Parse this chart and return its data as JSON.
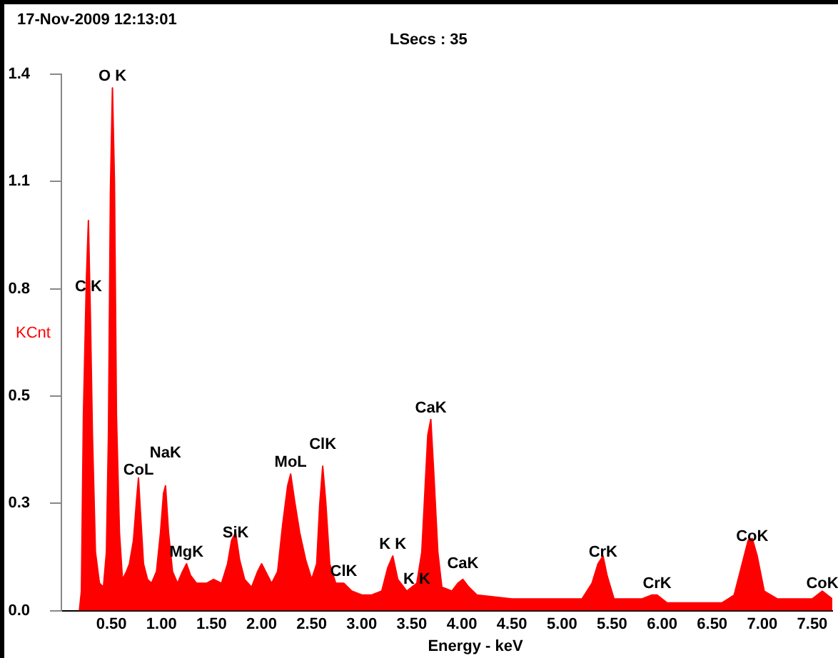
{
  "chart_data": {
    "type": "area",
    "title": "17-Nov-2009 12:13:01",
    "subtitle": "LSecs : 35",
    "xlabel": "Energy - keV",
    "ylabel": "KCnt",
    "x": [
      0.18,
      0.2,
      0.22,
      0.25,
      0.27,
      0.29,
      0.31,
      0.34,
      0.38,
      0.42,
      0.45,
      0.47,
      0.49,
      0.51,
      0.53,
      0.55,
      0.58,
      0.61,
      0.65,
      0.68,
      0.72,
      0.75,
      0.77,
      0.79,
      0.82,
      0.86,
      0.9,
      0.95,
      0.99,
      1.02,
      1.04,
      1.07,
      1.11,
      1.16,
      1.21,
      1.25,
      1.29,
      1.35,
      1.45,
      1.52,
      1.6,
      1.66,
      1.7,
      1.74,
      1.78,
      1.83,
      1.9,
      1.96,
      2.0,
      2.04,
      2.1,
      2.16,
      2.21,
      2.26,
      2.29,
      2.33,
      2.38,
      2.44,
      2.5,
      2.55,
      2.58,
      2.61,
      2.64,
      2.68,
      2.74,
      2.82,
      2.9,
      3.0,
      3.1,
      3.2,
      3.26,
      3.31,
      3.36,
      3.45,
      3.55,
      3.6,
      3.63,
      3.66,
      3.69,
      3.72,
      3.76,
      3.8,
      3.9,
      3.96,
      4.01,
      4.07,
      4.15,
      4.5,
      5.0,
      5.2,
      5.3,
      5.36,
      5.41,
      5.45,
      5.52,
      5.8,
      5.9,
      5.95,
      6.05,
      6.3,
      6.6,
      6.72,
      6.8,
      6.86,
      6.9,
      6.95,
      7.02,
      7.15,
      7.5,
      7.6,
      7.65,
      7.7
    ],
    "series": [
      {
        "color": "#ff0000",
        "values": [
          0,
          0.05,
          0.5,
          0.85,
          1.0,
          0.75,
          0.45,
          0.15,
          0.07,
          0.06,
          0.15,
          0.45,
          1.08,
          1.34,
          1.1,
          0.5,
          0.2,
          0.08,
          0.1,
          0.12,
          0.18,
          0.28,
          0.34,
          0.25,
          0.12,
          0.08,
          0.07,
          0.1,
          0.2,
          0.3,
          0.32,
          0.2,
          0.1,
          0.07,
          0.1,
          0.12,
          0.09,
          0.07,
          0.07,
          0.08,
          0.07,
          0.12,
          0.18,
          0.2,
          0.13,
          0.08,
          0.06,
          0.1,
          0.12,
          0.1,
          0.07,
          0.1,
          0.22,
          0.32,
          0.35,
          0.28,
          0.2,
          0.13,
          0.08,
          0.12,
          0.27,
          0.37,
          0.28,
          0.12,
          0.07,
          0.07,
          0.05,
          0.04,
          0.04,
          0.05,
          0.11,
          0.14,
          0.08,
          0.05,
          0.07,
          0.15,
          0.3,
          0.45,
          0.49,
          0.35,
          0.15,
          0.06,
          0.05,
          0.07,
          0.08,
          0.06,
          0.04,
          0.03,
          0.03,
          0.03,
          0.07,
          0.12,
          0.14,
          0.09,
          0.03,
          0.03,
          0.04,
          0.04,
          0.02,
          0.02,
          0.02,
          0.04,
          0.12,
          0.18,
          0.185,
          0.14,
          0.05,
          0.03,
          0.03,
          0.05,
          0.04,
          0.03
        ]
      }
    ],
    "xlim": [
      0,
      7.7
    ],
    "xticks": [
      {
        "value": 0.5,
        "label": "0.50"
      },
      {
        "value": 1,
        "label": "1.00"
      },
      {
        "value": 1.5,
        "label": "1.50"
      },
      {
        "value": 2,
        "label": "2.00"
      },
      {
        "value": 2.5,
        "label": "2.50"
      },
      {
        "value": 3,
        "label": "3.00"
      },
      {
        "value": 3.5,
        "label": "3.50"
      },
      {
        "value": 4,
        "label": "4.00"
      },
      {
        "value": 4.5,
        "label": "4.50"
      },
      {
        "value": 5,
        "label": "5.00"
      },
      {
        "value": 5.5,
        "label": "5.50"
      },
      {
        "value": 6,
        "label": "6.00"
      },
      {
        "value": 6.5,
        "label": "6.50"
      },
      {
        "value": 7,
        "label": "7.00"
      },
      {
        "value": 7.5,
        "label": "7.50"
      }
    ],
    "ylim": [
      0,
      1.375
    ],
    "yticks": [
      {
        "value": 0,
        "label": "0.0"
      },
      {
        "value": 0.275,
        "label": "0.3"
      },
      {
        "value": 0.55,
        "label": "0.5"
      },
      {
        "value": 0.825,
        "label": "0.8"
      },
      {
        "value": 1.1,
        "label": "1.1"
      },
      {
        "value": 1.375,
        "label": "1.4"
      }
    ],
    "grid": false,
    "legend": false,
    "marker": "none",
    "annotations": [
      {
        "text": "C K",
        "x": 0.27,
        "y": 0.8
      },
      {
        "text": "O K",
        "x": 0.51,
        "y": 1.34
      },
      {
        "text": "CoL",
        "x": 0.77,
        "y": 0.33
      },
      {
        "text": "NaK",
        "x": 1.04,
        "y": 0.32
      },
      {
        "text": "MgK",
        "x": 1.25,
        "y": 0.12
      },
      {
        "text": "SiK",
        "x": 1.74,
        "y": 0.17
      },
      {
        "text": "MoL",
        "x": 2.29,
        "y": 0.35
      },
      {
        "text": "ClK",
        "x": 2.61,
        "y": 0.36
      },
      {
        "text": "ClK",
        "x": 2.82,
        "y": 0.07
      },
      {
        "text": "K K",
        "x": 3.31,
        "y": 0.14
      },
      {
        "text": "K K",
        "x": 3.55,
        "y": 0.05
      },
      {
        "text": "CaK",
        "x": 3.69,
        "y": 0.49
      },
      {
        "text": "CaK",
        "x": 4.01,
        "y": 0.09
      },
      {
        "text": "CrK",
        "x": 5.41,
        "y": 0.12
      },
      {
        "text": "CrK",
        "x": 5.95,
        "y": 0.04
      },
      {
        "text": "CoK",
        "x": 6.9,
        "y": 0.16
      },
      {
        "text": "CoK",
        "x": 7.6,
        "y": 0.04
      }
    ]
  }
}
